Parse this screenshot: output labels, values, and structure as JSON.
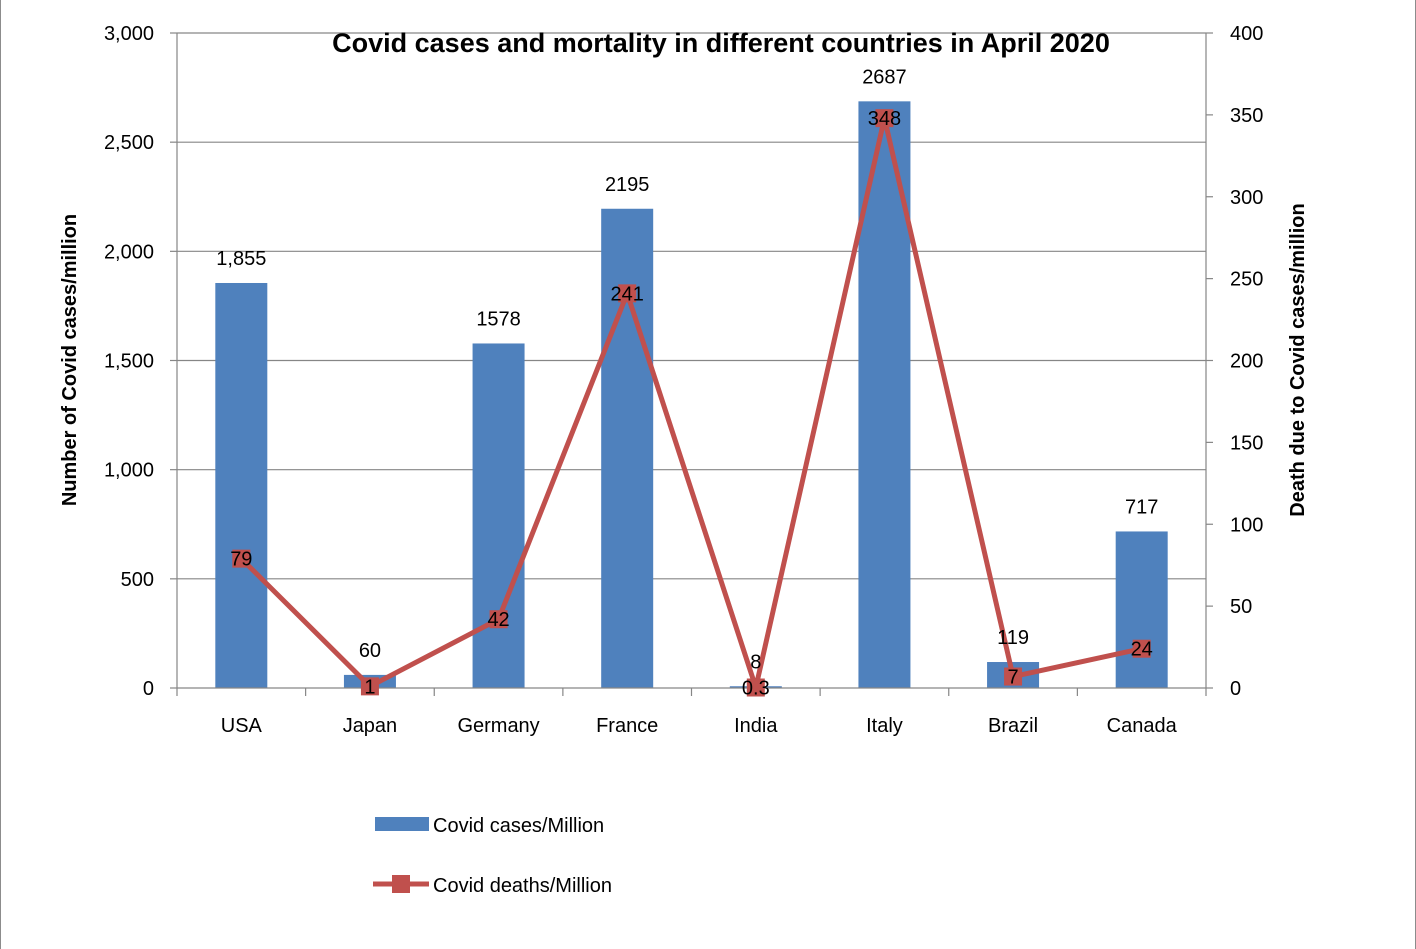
{
  "chart_data": {
    "type": "bar",
    "title": "Covid cases and mortality in different countries in April 2020",
    "categories": [
      "USA",
      "Japan",
      "Germany",
      "France",
      "India",
      "Italy",
      "Brazil",
      "Canada"
    ],
    "series": [
      {
        "name": "Covid cases/Million",
        "type": "bar",
        "axis": "left",
        "color": "#4F81BD",
        "values": [
          1855,
          60,
          1578,
          2195,
          8,
          2687,
          119,
          717
        ],
        "labels": [
          "1,855",
          "60",
          "1578",
          "2195",
          "8",
          "2687",
          "119",
          "717"
        ]
      },
      {
        "name": "Covid deaths/Million",
        "type": "line",
        "axis": "right",
        "color": "#C0504D",
        "values": [
          79,
          1,
          42,
          241,
          0.3,
          348,
          7,
          24
        ],
        "labels": [
          "79",
          "1",
          "42",
          "241",
          "0.3",
          "348",
          "7",
          "24"
        ]
      }
    ],
    "y_left": {
      "label": "Number of Covid cases/million",
      "range": [
        0,
        3000
      ],
      "ticks": [
        0,
        500,
        1000,
        1500,
        2000,
        2500,
        3000
      ],
      "tick_labels": [
        "0",
        "500",
        "1,000",
        "1,500",
        "2,000",
        "2,500",
        "3,000"
      ]
    },
    "y_right": {
      "label": "Death due to Covid cases/million",
      "range": [
        0,
        400
      ],
      "ticks": [
        0,
        50,
        100,
        150,
        200,
        250,
        300,
        350,
        400
      ],
      "tick_labels": [
        "0",
        "50",
        "100",
        "150",
        "200",
        "250",
        "300",
        "350",
        "400"
      ]
    },
    "grid": true,
    "legend": "bottom"
  }
}
